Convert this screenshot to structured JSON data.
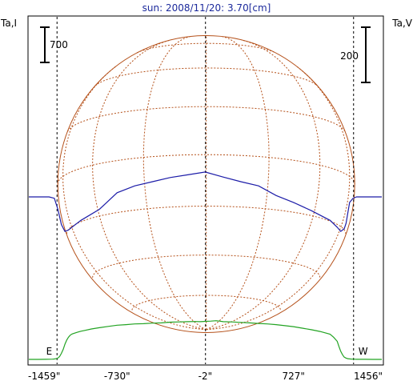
{
  "chart_data": {
    "type": "line",
    "title": "sun: 2008/11/20: 3.70[cm]",
    "colors": {
      "title": "#1c2a9c",
      "intensity": "#22a322",
      "polarization": "#1c1ca8",
      "disk": "#b5511a",
      "frame": "#000000"
    },
    "axes": {
      "left_label": "Ta,I",
      "right_label": "Ta,V",
      "x_range": [
        -1459,
        1456
      ],
      "x_ticks": [
        {
          "value": -1459,
          "label": "-1459\""
        },
        {
          "value": -730,
          "label": "-730\""
        },
        {
          "value": -2,
          "label": "-2\""
        },
        {
          "value": 727,
          "label": "727\""
        },
        {
          "value": 1456,
          "label": "1456\""
        }
      ],
      "left_scale_bar_label": "700",
      "right_scale_bar_label": "200",
      "limb_markers": [
        {
          "value": -1226,
          "label": "E"
        },
        {
          "value": 1223,
          "label": "W"
        }
      ]
    },
    "series": [
      {
        "key": "intensity",
        "x": [
          -1459,
          -1424,
          -1380,
          -1321,
          -1263,
          -1248,
          -1234,
          -1219,
          -1205,
          -1190,
          -1175,
          -1161,
          -1146,
          -1132,
          -1117,
          -1102,
          -1088,
          -1058,
          -1029,
          -1000,
          -942,
          -876,
          -803,
          -730,
          -657,
          -584,
          -511,
          -438,
          -365,
          -292,
          -219,
          -146,
          -88,
          -44,
          -2,
          44,
          88,
          117,
          146,
          219,
          292,
          365,
          438,
          511,
          584,
          657,
          727,
          800,
          873,
          946,
          1000,
          1029,
          1058,
          1088,
          1102,
          1117,
          1132,
          1146,
          1161,
          1175,
          1190,
          1205,
          1219,
          1234,
          1248,
          1263,
          1292,
          1321,
          1380,
          1412,
          1456
        ],
        "y": [
          0,
          0,
          0,
          2,
          5,
          8,
          14,
          25,
          55,
          120,
          200,
          300,
          385,
          440,
          480,
          505,
          515,
          540,
          560,
          575,
          605,
          630,
          655,
          680,
          690,
          705,
          710,
          720,
          725,
          740,
          745,
          750,
          752,
          750,
          755,
          760,
          768,
          760,
          750,
          745,
          735,
          725,
          715,
          705,
          690,
          670,
          650,
          620,
          590,
          555,
          520,
          500,
          440,
          360,
          260,
          160,
          90,
          45,
          25,
          15,
          10,
          6,
          4,
          3,
          2,
          1,
          1,
          1,
          0,
          0,
          0
        ]
      },
      {
        "key": "polarization",
        "x": [
          -1459,
          -1380,
          -1292,
          -1248,
          -1219,
          -1190,
          -1161,
          -1132,
          -1088,
          -1029,
          -876,
          -730,
          -584,
          -438,
          -292,
          -146,
          -2,
          146,
          292,
          438,
          584,
          727,
          876,
          1029,
          1088,
          1117,
          1146,
          1161,
          1190,
          1219,
          1248,
          1292,
          1380,
          1456
        ],
        "y": [
          0,
          0,
          0,
          -5,
          -45,
          -100,
          -125,
          -120,
          -105,
          -85,
          -45,
          15,
          40,
          55,
          70,
          80,
          90,
          72,
          55,
          40,
          5,
          -20,
          -50,
          -85,
          -110,
          -125,
          -115,
          -95,
          -20,
          -5,
          0,
          0,
          0,
          0
        ]
      }
    ],
    "disk": {
      "radius_arcsec": 1226,
      "latitude_lines_deg": [
        -60,
        -40,
        -20,
        0,
        20,
        40,
        60
      ],
      "longitude_lines_deg": [
        -75,
        -50,
        -25,
        0,
        25,
        50,
        75
      ]
    }
  }
}
